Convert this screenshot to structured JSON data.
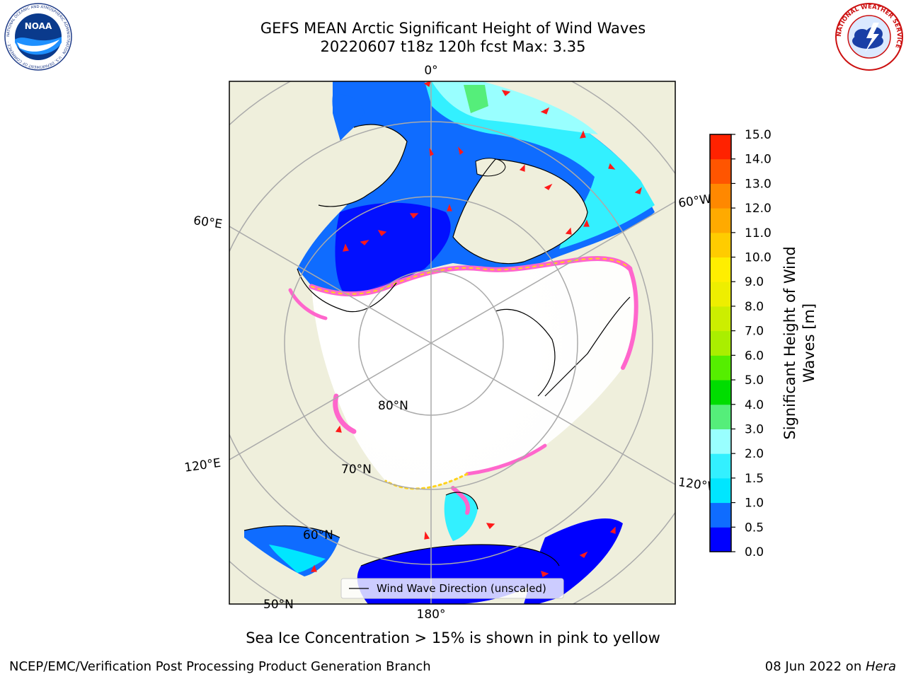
{
  "header": {
    "title_line1": "GEFS MEAN Arctic Significant Height of Wind Waves",
    "title_line2": "20220607 t18z 120h fcst   Max: 3.35"
  },
  "logos": {
    "noaa": "NOAA",
    "noaa_ring": "NATIONAL OCEANIC AND ATMOSPHERIC ADMINISTRATION · U.S. DEPARTMENT OF COMMERCE ·",
    "nws_ring": "NATIONAL WEATHER SERVICE"
  },
  "map": {
    "projection": "north-polar-stereographic",
    "longitude_labels": {
      "top": "0°",
      "bottom": "180°",
      "left_upper": "60°E",
      "left_lower": "120°E",
      "right_upper": "60°W",
      "right_lower": "120°W"
    },
    "latitude_labels": {
      "lat80": "80°N",
      "lat70": "70°N",
      "lat60": "60°N",
      "lat50": "50°N"
    },
    "legend_label": "Wind Wave Direction (unscaled)",
    "colors": {
      "land": "#efefdc",
      "ice_low": "#ff66cc",
      "ice_high": "#ffd21a",
      "ice_field": "#ffffff",
      "grid": "#aaaaaa"
    }
  },
  "colorbar": {
    "label_line1": "Significant Height of Wind",
    "label_line2": "Waves [m]",
    "ticks": [
      "0.0",
      "0.5",
      "1.0",
      "1.5",
      "2.0",
      "3.0",
      "4.0",
      "5.0",
      "6.0",
      "7.0",
      "8.0",
      "9.0",
      "10.0",
      "11.0",
      "12.0",
      "13.0",
      "14.0",
      "15.0"
    ],
    "colors": [
      "#0000ff",
      "#0f6cff",
      "#00e6ff",
      "#33f0ff",
      "#99ffff",
      "#55ee7a",
      "#00dd00",
      "#55ee00",
      "#aaee00",
      "#ccee00",
      "#eeee00",
      "#ffee00",
      "#ffcc00",
      "#ffaa00",
      "#ff8800",
      "#ff5500",
      "#ff2200"
    ]
  },
  "notes": {
    "ice_note": "Sea Ice Concentration > 15% is shown in pink to yellow"
  },
  "footer": {
    "left": "NCEP/EMC/Verification Post Processing Product Generation Branch",
    "right_date": "08 Jun 2022 on ",
    "right_machine": "Hera"
  }
}
